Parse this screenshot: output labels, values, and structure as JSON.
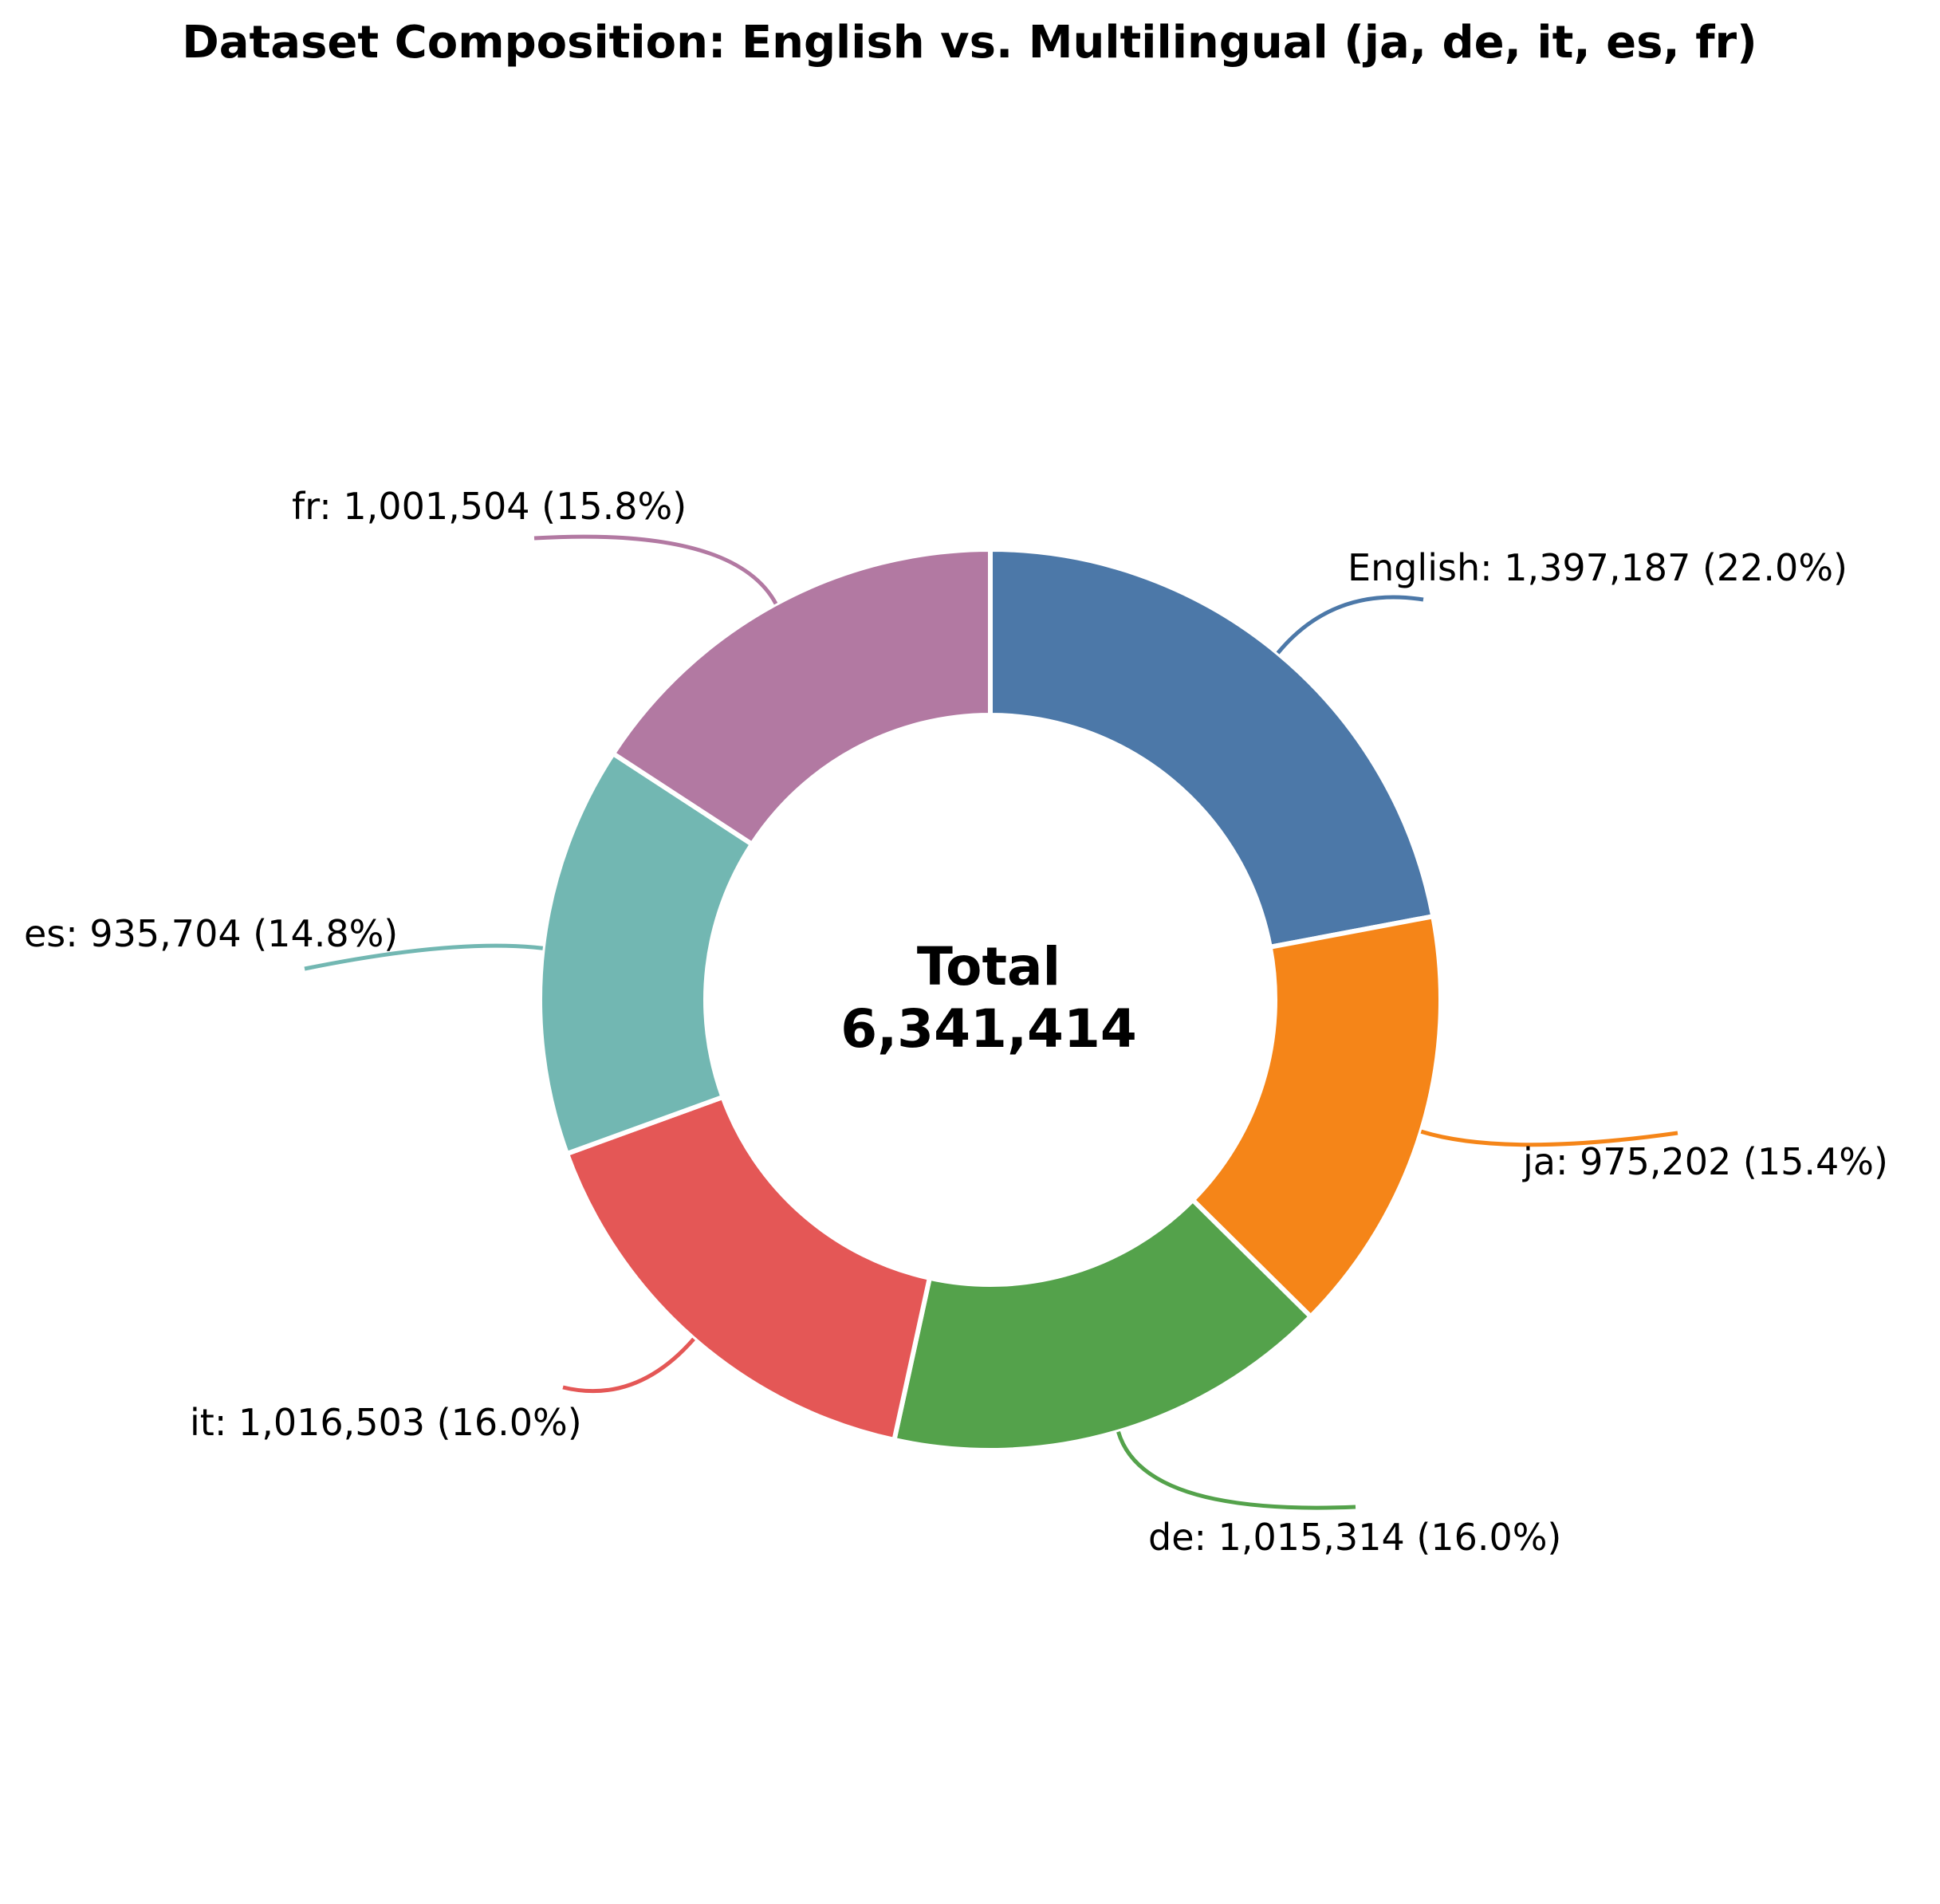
{
  "chart_data": {
    "type": "pie",
    "variant": "donut",
    "title": "Dataset Composition: English vs. Multilingual (ja, de, it, es, fr)",
    "center_label": {
      "line1": "Total",
      "line2": "6,341,414"
    },
    "total": 6341414,
    "slices": [
      {
        "name": "English",
        "value": 1397187,
        "percent": 22.0,
        "color": "#4c78a8",
        "label": "English: 1,397,187 (22.0%)"
      },
      {
        "name": "ja",
        "value": 975202,
        "percent": 15.4,
        "color": "#f58518",
        "label": "ja: 975,202 (15.4%)"
      },
      {
        "name": "de",
        "value": 1015314,
        "percent": 16.0,
        "color": "#54a24b",
        "label": "de: 1,015,314 (16.0%)"
      },
      {
        "name": "it",
        "value": 1016503,
        "percent": 16.0,
        "color": "#e45756",
        "label": "it: 1,016,503 (16.0%)"
      },
      {
        "name": "es",
        "value": 935704,
        "percent": 14.8,
        "color": "#72b7b2",
        "label": "es: 935,704 (14.8%)"
      },
      {
        "name": "fr",
        "value": 1001504,
        "percent": 15.8,
        "color": "#b279a2",
        "label": "fr: 1,001,504 (15.8%)"
      }
    ],
    "start_angle": "top",
    "direction": "clockwise"
  }
}
